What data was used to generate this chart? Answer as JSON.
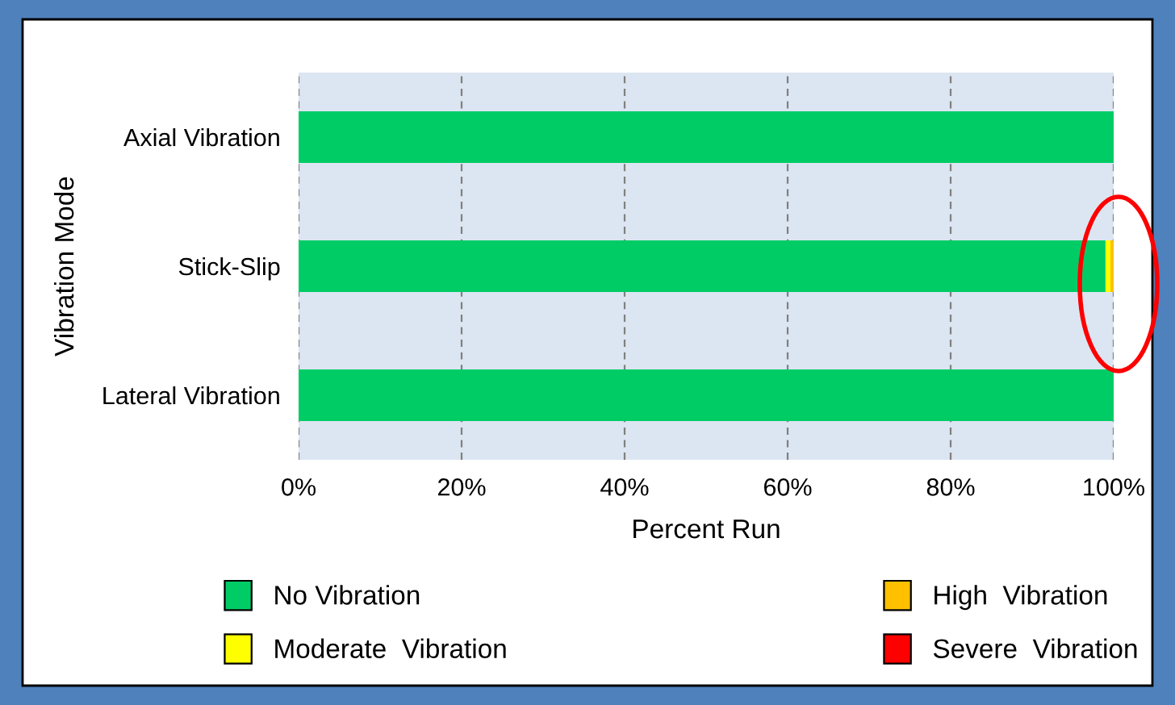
{
  "chart_data": {
    "type": "bar",
    "orientation": "horizontal",
    "stacked": true,
    "xlabel": "Percent Run",
    "ylabel": "Vibration Mode",
    "categories": [
      "Axial Vibration",
      "Stick-Slip",
      "Lateral Vibration"
    ],
    "series": [
      {
        "name": "No Vibration",
        "color": "#00cc66",
        "values": [
          100,
          99.0,
          100
        ]
      },
      {
        "name": "Moderate  Vibration",
        "color": "#ffff00",
        "values": [
          0,
          0.6,
          0
        ]
      },
      {
        "name": "High  Vibration",
        "color": "#ffc000",
        "values": [
          0,
          0.4,
          0
        ]
      },
      {
        "name": "Severe  Vibration",
        "color": "#ff0000",
        "values": [
          0,
          0,
          0
        ]
      }
    ],
    "xlim": [
      0,
      100
    ],
    "xticks": [
      {
        "value": 0,
        "label": "0%"
      },
      {
        "value": 20,
        "label": "20%"
      },
      {
        "value": 40,
        "label": "40%"
      },
      {
        "value": 60,
        "label": "60%"
      },
      {
        "value": 80,
        "label": "80%"
      },
      {
        "value": 100,
        "label": "100%"
      }
    ],
    "grid": "x",
    "legend": "bottom"
  }
}
